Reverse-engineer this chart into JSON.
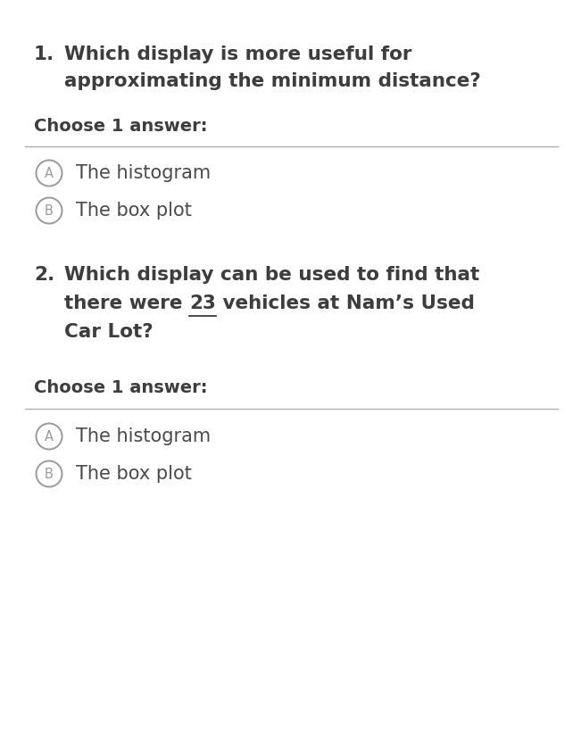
{
  "background_color": "#ffffff",
  "q1_number": "1.",
  "q1_text_line1": "Which display is more useful for",
  "q1_text_line2": "approximating the minimum distance?",
  "choose_label": "Choose 1 answer:",
  "q1_option_a": "The histogram",
  "q1_option_b": "The box plot",
  "q2_number": "2.",
  "q2_text_line1": "Which display can be used to find that",
  "q2_text_line2_pre": "there were ",
  "q2_text_number": "23",
  "q2_text_line2_post": " vehicles at Nam’s Used",
  "q2_text_line3": "Car Lot?",
  "choose_label2": "Choose 1 answer:",
  "q2_option_a": "The histogram",
  "q2_option_b": "The box plot",
  "divider_color": "#b0b0b0",
  "text_color_dark": "#3d3d3d",
  "text_color_option": "#4a4a4a",
  "circle_edge_color": "#9a9a9a",
  "q_fontsize": 15.5,
  "choose_fontsize": 14.0,
  "option_fontsize": 15.0,
  "fig_width": 6.51,
  "fig_height": 8.46,
  "dpi": 100
}
